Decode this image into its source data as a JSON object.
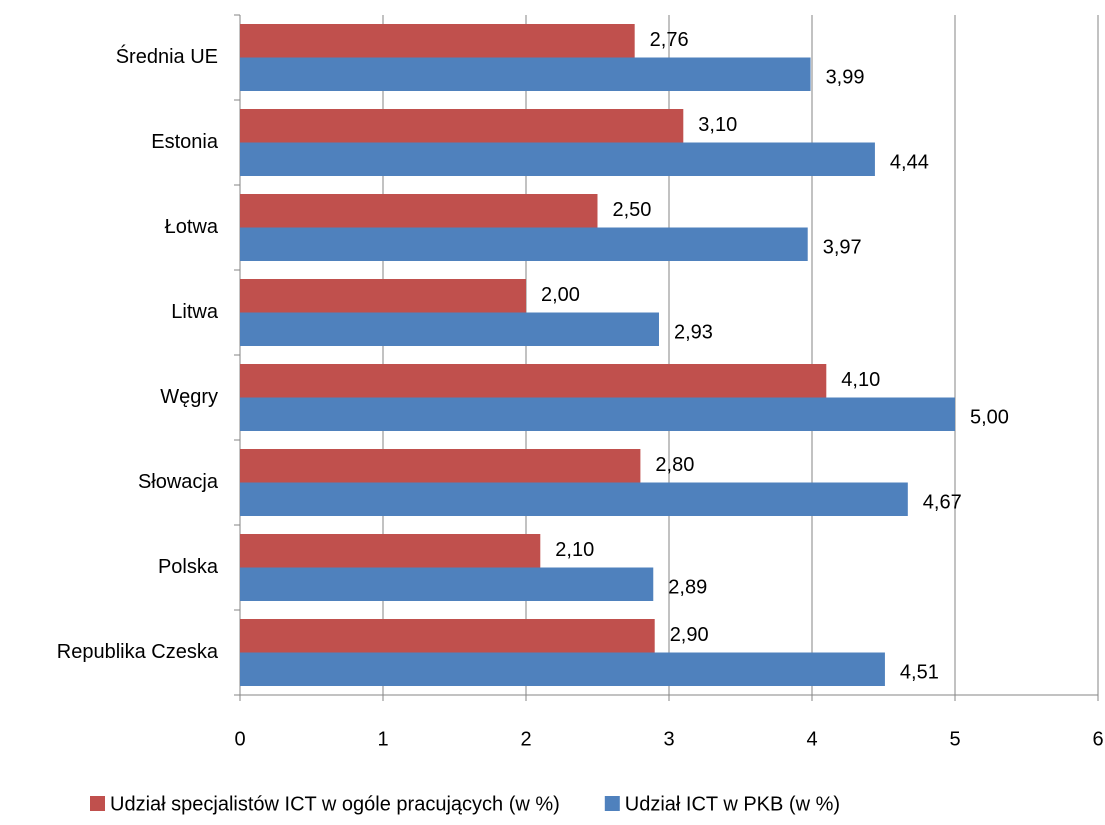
{
  "chart_data": {
    "type": "hbar",
    "categories": [
      "Średnia UE",
      "Estonia",
      "Łotwa",
      "Litwa",
      "Węgry",
      "Słowacja",
      "Polska",
      "Republika Czeska"
    ],
    "series": [
      {
        "name": "Udział specjalistów ICT w ogóle pracujących (w %)",
        "color": "#c0504d",
        "values": [
          2.76,
          3.1,
          2.5,
          2.0,
          4.1,
          2.8,
          2.1,
          2.9
        ],
        "value_labels": [
          "2,76",
          "3,10",
          "2,50",
          "2,00",
          "4,10",
          "2,80",
          "2,10",
          "2,90"
        ]
      },
      {
        "name": "Udział ICT w PKB (w %)",
        "color": "#4f81bd",
        "values": [
          3.99,
          4.44,
          3.97,
          2.93,
          5.0,
          4.67,
          2.89,
          4.51
        ],
        "value_labels": [
          "3,99",
          "4,44",
          "3,97",
          "2,93",
          "5,00",
          "4,67",
          "2,89",
          "4,51"
        ]
      }
    ],
    "xlim": [
      0,
      6
    ],
    "xticks": [
      0,
      1,
      2,
      3,
      4,
      5,
      6
    ],
    "grid": true,
    "legend": "bottom"
  }
}
